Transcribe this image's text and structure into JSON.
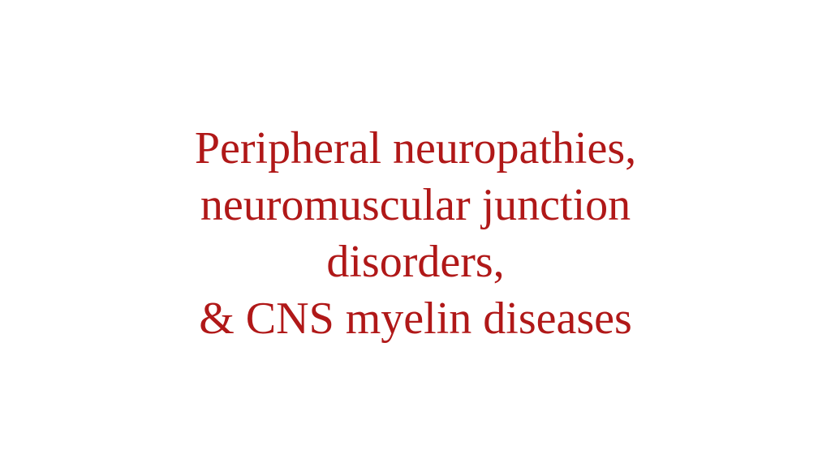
{
  "slide": {
    "title_lines": [
      "Peripheral neuropathies,",
      "neuromuscular junction",
      "disorders,",
      "& CNS myelin diseases"
    ],
    "title_color": "#b01818",
    "title_fontsize": 56,
    "background_color": "#ffffff",
    "font_family": "Georgia, 'Times New Roman', serif"
  }
}
